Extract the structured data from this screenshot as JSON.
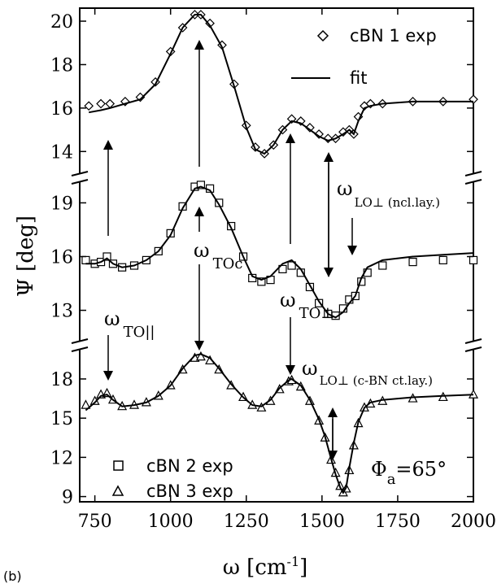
{
  "panel_label": "(b)",
  "chart_data": {
    "type": "line",
    "xlabel": "ω [cm",
    "xlabel_sup": "-1",
    "xlabel_end": "]",
    "ylabel": "Ψ [deg]",
    "xlim": [
      700,
      2000
    ],
    "x_ticks": [
      "750",
      "1000",
      "1250",
      "1500",
      "1750",
      "2000"
    ],
    "panels": [
      {
        "id": "top",
        "ylim": [
          13,
          20.6
        ],
        "y_ticks": [
          "14",
          "16",
          "18",
          "20"
        ],
        "series": [
          {
            "name": "cBN 1 exp",
            "marker": "diamond",
            "x": [
              730,
              770,
              800,
              850,
              900,
              950,
              1000,
              1040,
              1080,
              1100,
              1130,
              1170,
              1210,
              1250,
              1280,
              1310,
              1340,
              1370,
              1400,
              1430,
              1460,
              1490,
              1520,
              1545,
              1570,
              1590,
              1605,
              1620,
              1640,
              1660,
              1700,
              1800,
              1900,
              2000
            ],
            "y": [
              16.1,
              16.2,
              16.2,
              16.3,
              16.5,
              17.2,
              18.6,
              19.7,
              20.3,
              20.3,
              19.9,
              18.9,
              17.1,
              15.2,
              14.2,
              13.9,
              14.3,
              15.0,
              15.5,
              15.4,
              15.1,
              14.8,
              14.6,
              14.6,
              14.9,
              15.0,
              14.8,
              15.6,
              16.1,
              16.2,
              16.2,
              16.3,
              16.3,
              16.4
            ]
          },
          {
            "name": "fit",
            "marker": "line",
            "x": [
              730,
              770,
              800,
              850,
              900,
              950,
              1000,
              1040,
              1080,
              1100,
              1130,
              1170,
              1210,
              1250,
              1280,
              1310,
              1340,
              1370,
              1400,
              1430,
              1460,
              1490,
              1520,
              1545,
              1570,
              1590,
              1605,
              1620,
              1640,
              1660,
              1700,
              1800,
              1900,
              2000
            ],
            "y": [
              15.8,
              15.9,
              16.0,
              16.2,
              16.4,
              17.1,
              18.5,
              19.7,
              20.3,
              20.3,
              19.8,
              18.8,
              17.0,
              15.1,
              14.1,
              13.9,
              14.3,
              15.0,
              15.4,
              15.3,
              15.0,
              14.7,
              14.5,
              14.6,
              14.8,
              15.0,
              14.8,
              15.4,
              16.0,
              16.1,
              16.2,
              16.3,
              16.3,
              16.3
            ]
          }
        ]
      },
      {
        "id": "middle",
        "ylim": [
          11.3,
          20.2
        ],
        "y_ticks": [
          "13",
          "16",
          "19"
        ],
        "series": [
          {
            "name": "cBN 2 exp",
            "marker": "square",
            "x": [
              720,
              750,
              770,
              790,
              810,
              840,
              880,
              920,
              960,
              1000,
              1040,
              1080,
              1100,
              1130,
              1160,
              1200,
              1240,
              1270,
              1300,
              1330,
              1370,
              1400,
              1430,
              1460,
              1490,
              1520,
              1545,
              1570,
              1590,
              1610,
              1630,
              1650,
              1700,
              1800,
              1900,
              2000
            ],
            "y": [
              15.8,
              15.6,
              15.7,
              16.0,
              15.6,
              15.4,
              15.5,
              15.8,
              16.3,
              17.3,
              18.8,
              19.9,
              20.0,
              19.8,
              19.0,
              17.7,
              16.0,
              14.8,
              14.6,
              14.7,
              15.3,
              15.5,
              15.1,
              14.3,
              13.4,
              12.8,
              12.7,
              13.1,
              13.6,
              13.8,
              14.6,
              15.1,
              15.5,
              15.7,
              15.8,
              15.8
            ]
          },
          {
            "name": "fit",
            "marker": "line",
            "x": [
              720,
              750,
              770,
              790,
              810,
              840,
              880,
              920,
              960,
              1000,
              1040,
              1080,
              1100,
              1130,
              1160,
              1200,
              1240,
              1270,
              1300,
              1330,
              1370,
              1400,
              1430,
              1460,
              1490,
              1520,
              1545,
              1570,
              1590,
              1610,
              1630,
              1650,
              1700,
              1800,
              1900,
              2000
            ],
            "y": [
              15.6,
              15.6,
              15.7,
              15.9,
              15.6,
              15.4,
              15.5,
              15.8,
              16.3,
              17.2,
              18.7,
              19.8,
              19.9,
              19.7,
              18.9,
              17.6,
              16.0,
              14.9,
              14.7,
              14.9,
              15.6,
              15.8,
              15.3,
              14.4,
              13.5,
              12.8,
              12.6,
              12.9,
              13.4,
              13.8,
              14.8,
              15.4,
              15.8,
              16.0,
              16.1,
              16.2
            ]
          }
        ]
      },
      {
        "id": "bottom",
        "ylim": [
          8.6,
          20.3
        ],
        "y_ticks": [
          "9",
          "12",
          "15",
          "18"
        ],
        "series": [
          {
            "name": "cBN 3 exp",
            "marker": "triangle",
            "x": [
              720,
              750,
              770,
              790,
              810,
              840,
              880,
              920,
              960,
              1000,
              1040,
              1080,
              1100,
              1130,
              1160,
              1200,
              1240,
              1270,
              1300,
              1330,
              1360,
              1390,
              1400,
              1430,
              1460,
              1490,
              1510,
              1530,
              1545,
              1560,
              1570,
              1580,
              1590,
              1605,
              1620,
              1640,
              1660,
              1700,
              1800,
              1900,
              2000
            ],
            "y": [
              16.0,
              16.3,
              16.8,
              16.9,
              16.4,
              15.9,
              16.0,
              16.2,
              16.7,
              17.5,
              18.7,
              19.6,
              19.7,
              19.4,
              18.7,
              17.5,
              16.6,
              16.0,
              15.8,
              16.3,
              17.2,
              17.8,
              17.9,
              17.4,
              16.3,
              14.8,
              13.5,
              11.8,
              10.8,
              9.8,
              9.3,
              9.6,
              11.0,
              12.9,
              14.6,
              15.8,
              16.1,
              16.3,
              16.5,
              16.6,
              16.8
            ]
          },
          {
            "name": "fit",
            "marker": "line",
            "x": [
              720,
              750,
              770,
              790,
              810,
              840,
              880,
              920,
              960,
              1000,
              1040,
              1080,
              1100,
              1130,
              1160,
              1200,
              1240,
              1270,
              1300,
              1330,
              1360,
              1390,
              1400,
              1430,
              1460,
              1490,
              1510,
              1530,
              1545,
              1560,
              1570,
              1580,
              1590,
              1605,
              1620,
              1640,
              1660,
              1700,
              1800,
              1900,
              2000
            ],
            "y": [
              15.6,
              16.2,
              16.7,
              16.8,
              16.4,
              15.9,
              16.0,
              16.2,
              16.7,
              17.5,
              18.8,
              19.8,
              19.9,
              19.6,
              18.8,
              17.6,
              16.6,
              16.0,
              15.9,
              16.4,
              17.3,
              17.9,
              18.0,
              17.5,
              16.4,
              14.9,
              13.6,
              11.9,
              10.7,
              9.7,
              9.3,
              9.7,
              11.2,
              13.1,
              14.7,
              15.8,
              16.2,
              16.4,
              16.6,
              16.7,
              16.8
            ]
          }
        ]
      }
    ],
    "annotations": {
      "omega": "ω",
      "to_par_sub": "TO||",
      "toc_sub": "TOc",
      "to_perp_sub": "TO⊥",
      "lo_ncl_sub": "LO⊥ (ncl.lay.)",
      "lo_cbn_sub": "LO⊥ (c-BN ct.lay.)",
      "phi": "Φ",
      "phi_sub": "a",
      "phi_val": "=65°"
    },
    "legend": [
      "cBN 1 exp",
      "fit",
      "cBN 2 exp",
      "cBN 3 exp"
    ]
  }
}
